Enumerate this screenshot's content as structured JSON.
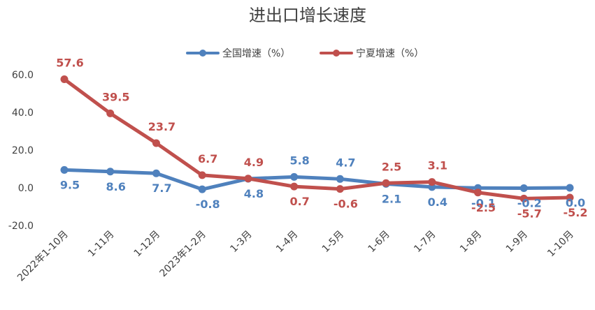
{
  "chart_data": {
    "type": "line",
    "title": "进出口增长速度",
    "categories": [
      "2022年1-10月",
      "1-11月",
      "1-12月",
      "2023年1-2月",
      "1-3月",
      "1-4月",
      "1-5月",
      "1-6月",
      "1-7月",
      "1-8月",
      "1-9月",
      "1-10月"
    ],
    "series": [
      {
        "name": "全国增速（%）",
        "color": "#4F81BD",
        "values": [
          9.5,
          8.6,
          7.7,
          -0.8,
          4.8,
          5.8,
          4.7,
          2.1,
          0.4,
          -0.1,
          -0.2,
          0.0
        ],
        "labels": [
          "9.5",
          "8.6",
          "7.7",
          "-0.8",
          "4.8",
          "5.8",
          "4.7",
          "2.1",
          "0.4",
          "-0.1",
          "-0.2",
          "0.0"
        ]
      },
      {
        "name": "宁夏增速（%）",
        "color": "#C0504D",
        "values": [
          57.6,
          39.5,
          23.7,
          6.7,
          4.9,
          0.7,
          -0.6,
          2.5,
          3.1,
          -2.5,
          -5.7,
          -5.2
        ],
        "labels": [
          "57.6",
          "39.5",
          "23.7",
          "6.7",
          "4.9",
          "0.7",
          "-0.6",
          "2.5",
          "3.1",
          "-2.5",
          "-5.7",
          "-5.2"
        ]
      }
    ],
    "yticks": [
      "60.0",
      "40.0",
      "20.0",
      "0.0",
      "-20.0"
    ],
    "ytick_values": [
      60,
      40,
      20,
      0,
      -20
    ],
    "ylim": [
      -20,
      60
    ],
    "grid": false,
    "legend": "top-center"
  }
}
